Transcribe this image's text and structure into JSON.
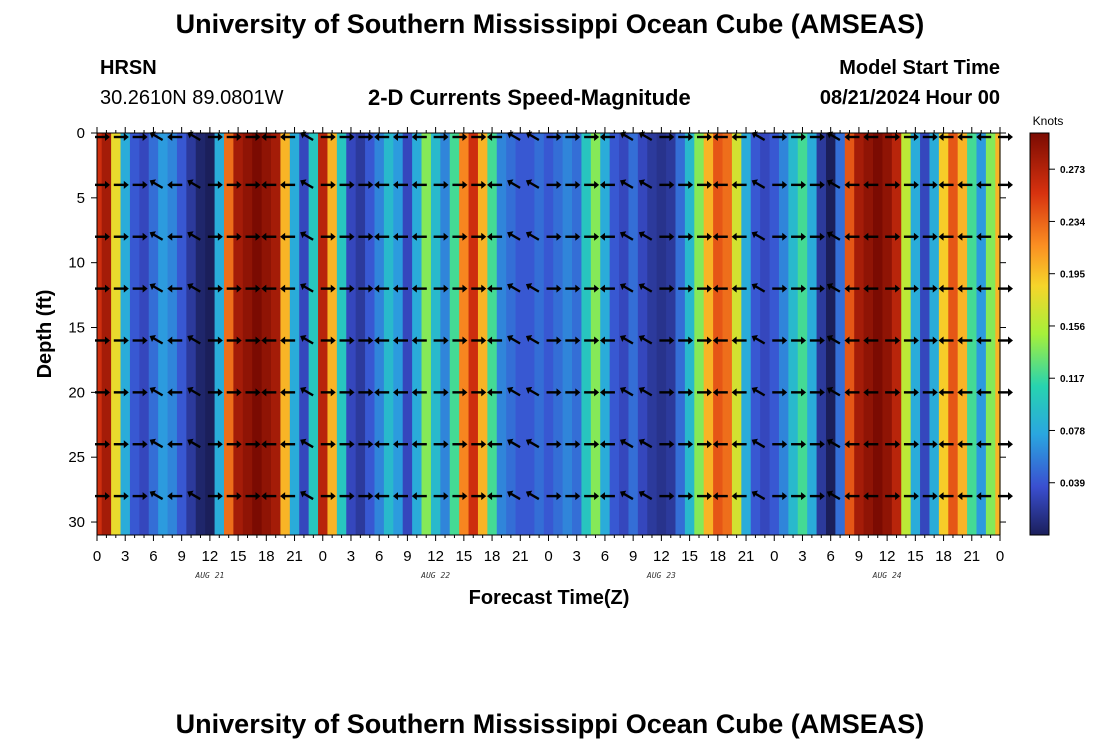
{
  "page": {
    "title_top": "University of Southern Mississippi Ocean Cube (AMSEAS)",
    "title_bottom": "University of Southern Mississippi Ocean Cube (AMSEAS)",
    "station": "HRSN",
    "coords": "30.2610N  89.0801W",
    "subtitle": "2-D Currents Speed-Magnitude",
    "model_label": "Model Start Time",
    "model_time": "08/21/2024 Hour 00"
  },
  "chart_data": {
    "type": "heatmap",
    "title": "2-D Currents Speed-Magnitude",
    "xlabel": "Forecast Time(Z)",
    "ylabel": "Depth (ft)",
    "ylim": [
      0,
      31
    ],
    "y_ticks": [
      0,
      5,
      10,
      15,
      20,
      25,
      30
    ],
    "x_hours_range": [
      0,
      96
    ],
    "x_tick_labels": [
      "0",
      "3",
      "6",
      "9",
      "12",
      "15",
      "18",
      "21",
      "0",
      "3",
      "6",
      "9",
      "12",
      "15",
      "18",
      "21",
      "0",
      "3",
      "6",
      "9",
      "12",
      "15",
      "18",
      "21",
      "0",
      "3",
      "6",
      "9",
      "12",
      "15",
      "18",
      "21",
      "0"
    ],
    "day_labels": [
      {
        "label": "AUG 21",
        "hour": 12
      },
      {
        "label": "AUG 22",
        "hour": 36
      },
      {
        "label": "AUG 23",
        "hour": 60
      },
      {
        "label": "AUG 24",
        "hour": 84
      }
    ],
    "colorbar": {
      "unit": "Knots",
      "min": 0.0,
      "max": 0.3,
      "ticks": [
        "0.273",
        "0.234",
        "0.195",
        "0.156",
        "0.117",
        "0.078",
        "0.039"
      ]
    },
    "speed_profile_knots": [
      {
        "hour": 0,
        "speed": 0.26
      },
      {
        "hour": 1,
        "speed": 0.28
      },
      {
        "hour": 2,
        "speed": 0.18
      },
      {
        "hour": 3,
        "speed": 0.08
      },
      {
        "hour": 4,
        "speed": 0.04
      },
      {
        "hour": 5,
        "speed": 0.03
      },
      {
        "hour": 6,
        "speed": 0.05
      },
      {
        "hour": 7,
        "speed": 0.07
      },
      {
        "hour": 8,
        "speed": 0.06
      },
      {
        "hour": 9,
        "speed": 0.04
      },
      {
        "hour": 10,
        "speed": 0.02
      },
      {
        "hour": 11,
        "speed": 0.005
      },
      {
        "hour": 12,
        "speed": 0.0
      },
      {
        "hour": 13,
        "speed": 0.08
      },
      {
        "hour": 14,
        "speed": 0.23
      },
      {
        "hour": 15,
        "speed": 0.28
      },
      {
        "hour": 16,
        "speed": 0.29
      },
      {
        "hour": 17,
        "speed": 0.3
      },
      {
        "hour": 18,
        "speed": 0.29
      },
      {
        "hour": 19,
        "speed": 0.28
      },
      {
        "hour": 20,
        "speed": 0.2
      },
      {
        "hour": 21,
        "speed": 0.08
      },
      {
        "hour": 22,
        "speed": 0.03
      },
      {
        "hour": 23,
        "speed": 0.1
      },
      {
        "hour": 24,
        "speed": 0.27
      },
      {
        "hour": 25,
        "speed": 0.2
      },
      {
        "hour": 26,
        "speed": 0.1
      },
      {
        "hour": 27,
        "speed": 0.03
      },
      {
        "hour": 28,
        "speed": 0.02
      },
      {
        "hour": 29,
        "speed": 0.04
      },
      {
        "hour": 30,
        "speed": 0.06
      },
      {
        "hour": 31,
        "speed": 0.09
      },
      {
        "hour": 32,
        "speed": 0.07
      },
      {
        "hour": 33,
        "speed": 0.03
      },
      {
        "hour": 34,
        "speed": 0.08
      },
      {
        "hour": 35,
        "speed": 0.14
      },
      {
        "hour": 36,
        "speed": 0.09
      },
      {
        "hour": 37,
        "speed": 0.06
      },
      {
        "hour": 38,
        "speed": 0.12
      },
      {
        "hour": 39,
        "speed": 0.22
      },
      {
        "hour": 40,
        "speed": 0.26
      },
      {
        "hour": 41,
        "speed": 0.2
      },
      {
        "hour": 42,
        "speed": 0.12
      },
      {
        "hour": 43,
        "speed": 0.06
      },
      {
        "hour": 44,
        "speed": 0.05
      },
      {
        "hour": 45,
        "speed": 0.04
      },
      {
        "hour": 46,
        "speed": 0.04
      },
      {
        "hour": 47,
        "speed": 0.05
      },
      {
        "hour": 48,
        "speed": 0.04
      },
      {
        "hour": 49,
        "speed": 0.05
      },
      {
        "hour": 50,
        "speed": 0.06
      },
      {
        "hour": 51,
        "speed": 0.05
      },
      {
        "hour": 52,
        "speed": 0.1
      },
      {
        "hour": 53,
        "speed": 0.14
      },
      {
        "hour": 54,
        "speed": 0.08
      },
      {
        "hour": 55,
        "speed": 0.04
      },
      {
        "hour": 56,
        "speed": 0.03
      },
      {
        "hour": 57,
        "speed": 0.05
      },
      {
        "hour": 58,
        "speed": 0.03
      },
      {
        "hour": 59,
        "speed": 0.02
      },
      {
        "hour": 60,
        "speed": 0.015
      },
      {
        "hour": 61,
        "speed": 0.02
      },
      {
        "hour": 62,
        "speed": 0.05
      },
      {
        "hour": 63,
        "speed": 0.09
      },
      {
        "hour": 64,
        "speed": 0.14
      },
      {
        "hour": 65,
        "speed": 0.2
      },
      {
        "hour": 66,
        "speed": 0.24
      },
      {
        "hour": 67,
        "speed": 0.23
      },
      {
        "hour": 68,
        "speed": 0.17
      },
      {
        "hour": 69,
        "speed": 0.08
      },
      {
        "hour": 70,
        "speed": 0.04
      },
      {
        "hour": 71,
        "speed": 0.03
      },
      {
        "hour": 72,
        "speed": 0.04
      },
      {
        "hour": 73,
        "speed": 0.06
      },
      {
        "hour": 74,
        "speed": 0.09
      },
      {
        "hour": 75,
        "speed": 0.12
      },
      {
        "hour": 76,
        "speed": 0.08
      },
      {
        "hour": 77,
        "speed": 0.02
      },
      {
        "hour": 78,
        "speed": 0.0
      },
      {
        "hour": 79,
        "speed": 0.05
      },
      {
        "hour": 80,
        "speed": 0.24
      },
      {
        "hour": 81,
        "speed": 0.28
      },
      {
        "hour": 82,
        "speed": 0.29
      },
      {
        "hour": 83,
        "speed": 0.3
      },
      {
        "hour": 84,
        "speed": 0.29
      },
      {
        "hour": 85,
        "speed": 0.27
      },
      {
        "hour": 86,
        "speed": 0.16
      },
      {
        "hour": 87,
        "speed": 0.08
      },
      {
        "hour": 88,
        "speed": 0.03
      },
      {
        "hour": 89,
        "speed": 0.08
      },
      {
        "hour": 90,
        "speed": 0.19
      },
      {
        "hour": 91,
        "speed": 0.24
      },
      {
        "hour": 92,
        "speed": 0.2
      },
      {
        "hour": 93,
        "speed": 0.12
      },
      {
        "hour": 94,
        "speed": 0.07
      },
      {
        "hour": 95,
        "speed": 0.14
      },
      {
        "hour": 96,
        "speed": 0.2
      }
    ],
    "vector_rows_ft": [
      0,
      4,
      8,
      12,
      16,
      20,
      24,
      28
    ]
  }
}
